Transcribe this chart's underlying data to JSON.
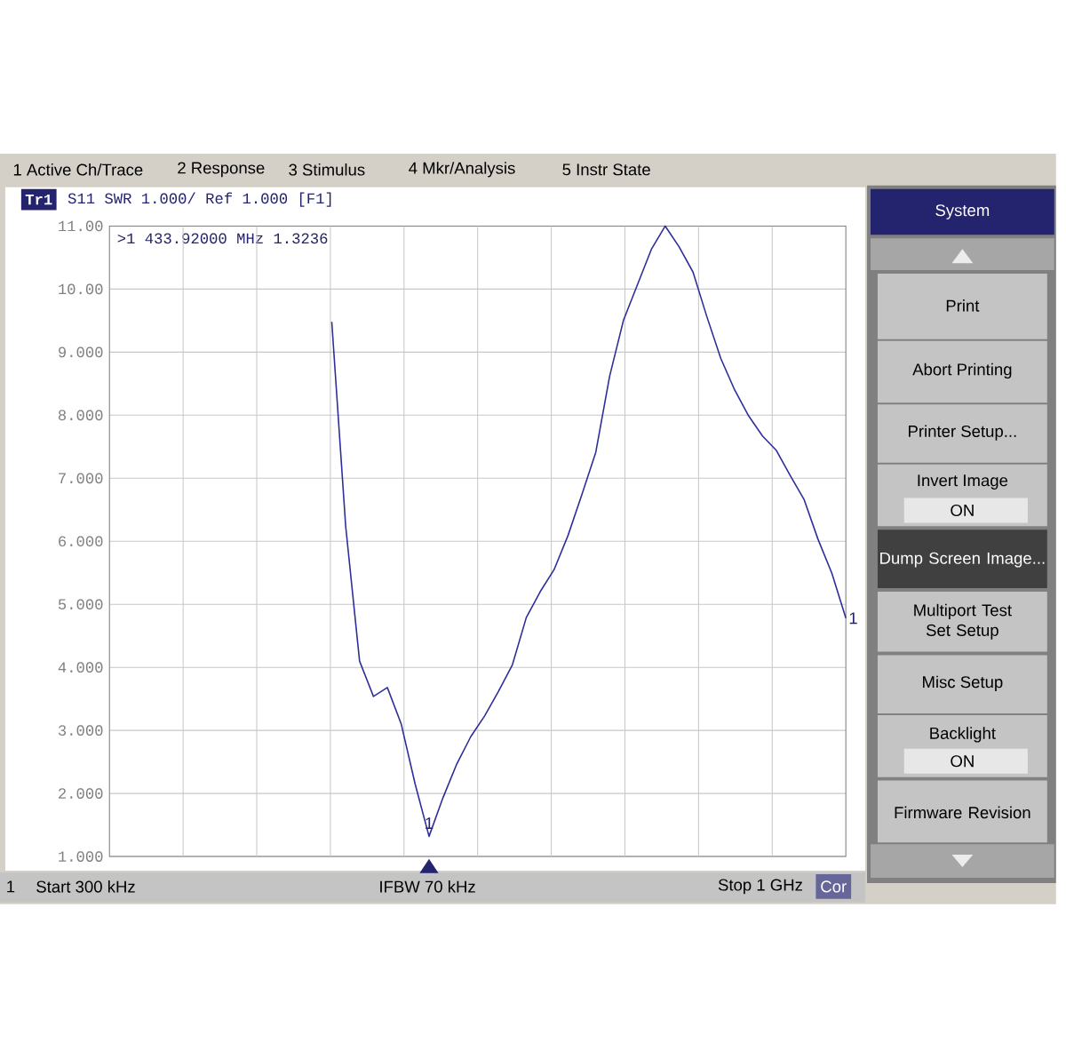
{
  "chart_data": {
    "type": "line",
    "title": "S11 SWR 1.000/ Ref 1.000 [F1]",
    "categories": [
      null,
      null,
      null,
      null,
      null,
      null,
      null,
      null,
      null,
      null,
      null,
      null,
      null,
      null,
      null,
      null,
      null,
      null,
      null,
      null,
      null,
      null,
      null,
      null,
      null,
      null,
      null,
      null,
      null,
      null,
      null,
      null,
      null,
      null,
      null,
      null,
      null,
      null,
      null,
      null,
      null,
      null,
      null,
      null,
      null,
      null,
      null,
      null,
      null,
      null,
      null,
      null,
      null,
      null
    ],
    "series": [
      {
        "color": "#2e2e9a",
        "values": [
          null,
          null,
          null,
          null,
          null,
          null,
          null,
          null,
          null,
          null,
          null,
          null,
          null,
          null,
          null,
          null,
          9.48,
          6.24,
          4.1,
          3.54,
          3.68,
          3.1,
          2.15,
          1.32,
          1.93,
          2.47,
          2.9,
          3.23,
          3.62,
          4.04,
          4.79,
          5.2,
          5.55,
          6.09,
          6.74,
          7.41,
          8.62,
          9.51,
          10.07,
          10.63,
          11.0,
          10.67,
          10.27,
          9.56,
          8.9,
          8.4,
          7.99,
          7.67,
          7.44,
          7.04,
          6.66,
          6.03,
          5.49,
          4.78
        ]
      }
    ],
    "ylim": [
      1,
      11
    ],
    "yticks": [
      {
        "value": 1,
        "label": "1.000"
      },
      {
        "value": 2,
        "label": "2.000"
      },
      {
        "value": 3,
        "label": "3.000"
      },
      {
        "value": 4,
        "label": "4.000"
      },
      {
        "value": 5,
        "label": "5.000"
      },
      {
        "value": 6,
        "label": "6.000"
      },
      {
        "value": 7,
        "label": "7.000"
      },
      {
        "value": 8,
        "label": "8.000"
      },
      {
        "value": 9,
        "label": "9.000"
      },
      {
        "value": 10,
        "label": "10.00"
      },
      {
        "value": 11,
        "label": "11.00"
      }
    ],
    "tick_labels": "y",
    "grid": true,
    "annotations": [
      "1 Active Ch/Trace",
      "2 Response",
      "3 Stimulus",
      "4 Mkr/Analysis",
      "5 Instr State",
      "Tr1",
      ">1  433.92000 MHz  1.3236",
      {
        "text": "1",
        "y": 1.32
      },
      "1",
      "1",
      "Start 300 kHz",
      "IFBW 70 kHz",
      "Stop 1 GHz",
      "Cor",
      "System",
      "Print",
      "Abort Printing",
      "Printer Setup...",
      "Invert Image",
      "ON",
      "Dump Screen Image...",
      "Multiport Test Set Setup",
      "Misc Setup",
      "Backlight",
      "ON",
      "Firmware Revision"
    ]
  }
}
